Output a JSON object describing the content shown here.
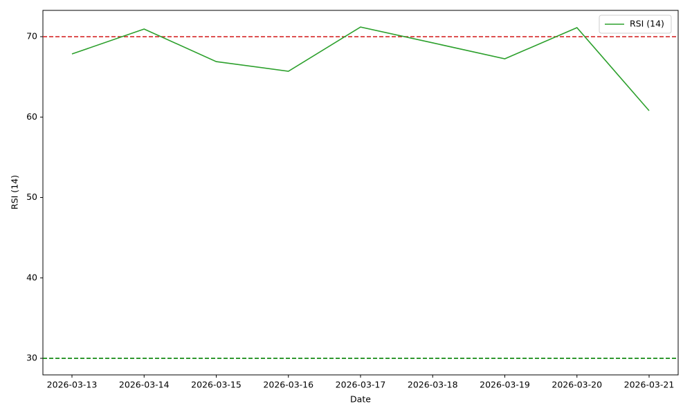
{
  "chart_data": {
    "type": "line",
    "x_label": "Date",
    "y_label": "RSI (14)",
    "categories": [
      "2026-03-13",
      "2026-03-14",
      "2026-03-15",
      "2026-03-16",
      "2026-03-17",
      "2026-03-18",
      "2026-03-19",
      "2026-03-20",
      "2026-03-21"
    ],
    "series": [
      {
        "name": "RSI (14)",
        "color": "#2ca02c",
        "values": [
          67.85,
          70.95,
          66.9,
          65.7,
          71.2,
          69.23,
          67.25,
          71.12,
          60.8
        ]
      }
    ],
    "reference_lines": [
      {
        "value": 70,
        "color": "#d62728"
      },
      {
        "value": 30,
        "color": "#008000"
      }
    ],
    "ylim": [
      27.94,
      73.27
    ],
    "yticks": [
      30,
      40,
      50,
      60,
      70
    ],
    "grid": false,
    "legend": "upper right"
  }
}
